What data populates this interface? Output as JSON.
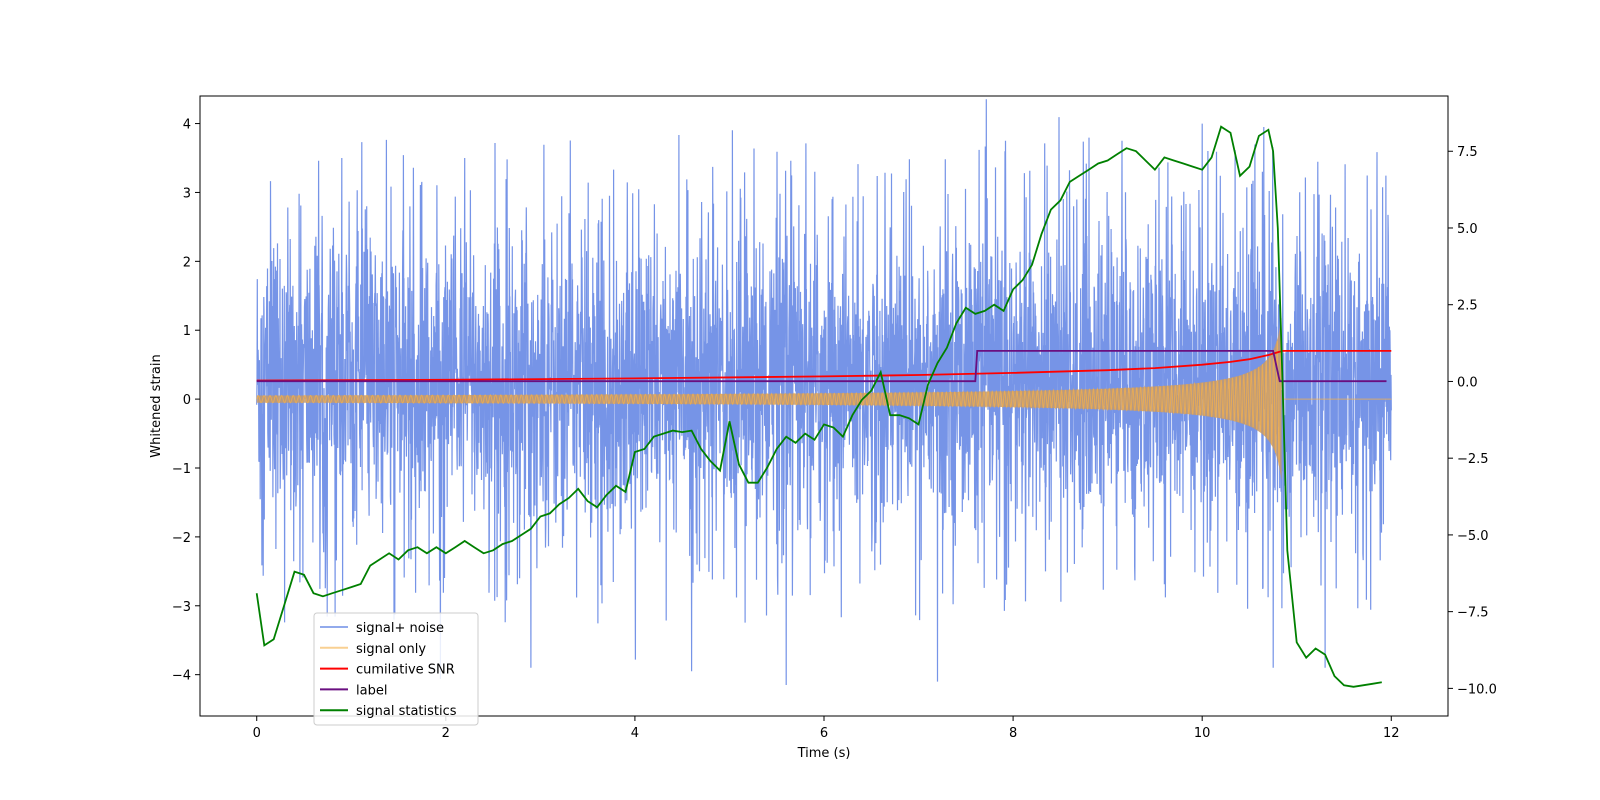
{
  "chart_data": {
    "type": "line",
    "title": "",
    "xlabel": "Time (s)",
    "ylabel": "Whitened strain",
    "y2label": "",
    "xlim": [
      -0.6,
      12.6
    ],
    "ylim": [
      -4.6,
      4.4
    ],
    "y2lim": [
      -10.9,
      9.3
    ],
    "xticks": [
      0,
      2,
      4,
      6,
      8,
      10,
      12
    ],
    "xtick_labels": [
      "0",
      "2",
      "4",
      "6",
      "8",
      "10",
      "12"
    ],
    "yticks": [
      -4,
      -3,
      -2,
      -1,
      0,
      1,
      2,
      3,
      4
    ],
    "ytick_labels": [
      "−4",
      "−3",
      "−2",
      "−1",
      "0",
      "1",
      "2",
      "3",
      "4"
    ],
    "y2ticks": [
      -10,
      -7.5,
      -5,
      -2.5,
      0,
      2.5,
      5,
      7.5
    ],
    "y2tick_labels": [
      "−10.0",
      "−7.5",
      "−5.0",
      "−2.5",
      "0.0",
      "2.5",
      "5.0",
      "7.5"
    ],
    "legend_position": "lower-left",
    "series": [
      {
        "name": "signal+ noise",
        "color": "#6f8ee6",
        "kind": "noise",
        "x_range": [
          0,
          12
        ],
        "typical_range": [
          -1.7,
          2.2
        ],
        "extremes": [
          [
            0.9,
            3.5
          ],
          [
            2.2,
            3.5
          ],
          [
            1.45,
            -3.2
          ],
          [
            2.9,
            -3.9
          ],
          [
            4.6,
            -3.95
          ],
          [
            5.6,
            -4.15
          ],
          [
            7.2,
            -4.1
          ],
          [
            9.15,
            3.75
          ],
          [
            10.0,
            4.0
          ],
          [
            10.65,
            3.95
          ],
          [
            10.75,
            -3.9
          ],
          [
            11.3,
            -3.9
          ]
        ]
      },
      {
        "name": "signal only",
        "color": "#f5b04a",
        "kind": "chirp",
        "x_range": [
          0,
          10.85
        ],
        "merger_time": 10.85,
        "peak_amplitude": 1.3
      },
      {
        "name": "cumilative SNR",
        "color": "#ff0000",
        "kind": "line",
        "x": [
          0,
          2,
          4,
          6,
          7,
          8,
          9,
          9.5,
          10,
          10.3,
          10.5,
          10.7,
          10.8,
          10.85,
          12
        ],
        "y": [
          0.27,
          0.28,
          0.3,
          0.33,
          0.35,
          0.38,
          0.42,
          0.45,
          0.5,
          0.54,
          0.58,
          0.64,
          0.68,
          0.7,
          0.7
        ]
      },
      {
        "name": "label",
        "color": "#6a0f80",
        "kind": "line",
        "x": [
          0,
          7.6,
          7.62,
          10.75,
          10.82,
          11.95
        ],
        "y": [
          0.26,
          0.26,
          0.7,
          0.7,
          0.26,
          0.26
        ]
      },
      {
        "name": "signal statistics",
        "color": "#008000",
        "kind": "line",
        "axis": "right",
        "x": [
          0.0,
          0.08,
          0.18,
          0.3,
          0.4,
          0.5,
          0.6,
          0.7,
          0.8,
          0.9,
          1.0,
          1.1,
          1.2,
          1.3,
          1.4,
          1.5,
          1.6,
          1.7,
          1.8,
          1.9,
          2.0,
          2.1,
          2.2,
          2.3,
          2.4,
          2.5,
          2.6,
          2.7,
          2.8,
          2.9,
          3.0,
          3.1,
          3.2,
          3.3,
          3.4,
          3.5,
          3.6,
          3.7,
          3.8,
          3.9,
          4.0,
          4.1,
          4.2,
          4.3,
          4.4,
          4.5,
          4.6,
          4.7,
          4.8,
          4.9,
          5.0,
          5.1,
          5.2,
          5.3,
          5.4,
          5.5,
          5.6,
          5.7,
          5.8,
          5.9,
          6.0,
          6.1,
          6.2,
          6.3,
          6.4,
          6.5,
          6.6,
          6.7,
          6.8,
          6.9,
          7.0,
          7.1,
          7.2,
          7.3,
          7.4,
          7.5,
          7.6,
          7.7,
          7.8,
          7.9,
          8.0,
          8.1,
          8.2,
          8.3,
          8.4,
          8.5,
          8.6,
          8.7,
          8.8,
          8.9,
          9.0,
          9.1,
          9.2,
          9.3,
          9.4,
          9.5,
          9.6,
          9.7,
          9.8,
          9.9,
          10.0,
          10.1,
          10.2,
          10.3,
          10.4,
          10.5,
          10.6,
          10.7,
          10.75,
          10.8,
          10.85,
          10.9,
          11.0,
          11.1,
          11.2,
          11.3,
          11.4,
          11.5,
          11.6,
          11.7,
          11.8,
          11.9
        ],
        "y": [
          -6.9,
          -8.6,
          -8.4,
          -7.2,
          -6.2,
          -6.3,
          -6.9,
          -7.0,
          -6.9,
          -6.8,
          -6.7,
          -6.6,
          -6.0,
          -5.8,
          -5.6,
          -5.8,
          -5.5,
          -5.4,
          -5.6,
          -5.4,
          -5.6,
          -5.4,
          -5.2,
          -5.4,
          -5.6,
          -5.5,
          -5.3,
          -5.2,
          -5.0,
          -4.8,
          -4.4,
          -4.3,
          -4.0,
          -3.8,
          -3.5,
          -3.9,
          -4.1,
          -3.7,
          -3.4,
          -3.6,
          -2.3,
          -2.2,
          -1.8,
          -1.7,
          -1.6,
          -1.65,
          -1.6,
          -2.2,
          -2.6,
          -2.9,
          -1.3,
          -2.7,
          -3.3,
          -3.3,
          -2.8,
          -2.2,
          -1.8,
          -2.0,
          -1.7,
          -1.9,
          -1.4,
          -1.5,
          -1.8,
          -1.1,
          -0.6,
          -0.3,
          0.3,
          -1.1,
          -1.1,
          -1.2,
          -1.4,
          -0.1,
          0.6,
          1.1,
          1.9,
          2.4,
          2.2,
          2.3,
          2.5,
          2.3,
          3.0,
          3.3,
          3.8,
          4.8,
          5.6,
          5.9,
          6.5,
          6.7,
          6.9,
          7.1,
          7.2,
          7.4,
          7.6,
          7.5,
          7.2,
          6.9,
          7.3,
          7.2,
          7.1,
          7.0,
          6.9,
          7.3,
          8.3,
          8.1,
          6.7,
          7.0,
          8.0,
          8.2,
          7.5,
          5.0,
          0.0,
          -5.5,
          -8.5,
          -9.0,
          -8.7,
          -8.9,
          -9.6,
          -9.9,
          -9.95,
          -9.9,
          -9.85,
          -9.8
        ]
      }
    ]
  }
}
